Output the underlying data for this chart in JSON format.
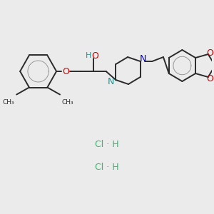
{
  "bg_color": "#ebebeb",
  "line_color": "#2a2a2a",
  "o_color": "#cc0000",
  "n_blue": "#0000cc",
  "n_teal": "#2e8b8b",
  "oh_teal": "#2e8b8b",
  "clh_color": "#3cb371",
  "lw": 1.4,
  "clh1": [
    0.5,
    0.27
  ],
  "clh2": [
    0.5,
    0.18
  ]
}
